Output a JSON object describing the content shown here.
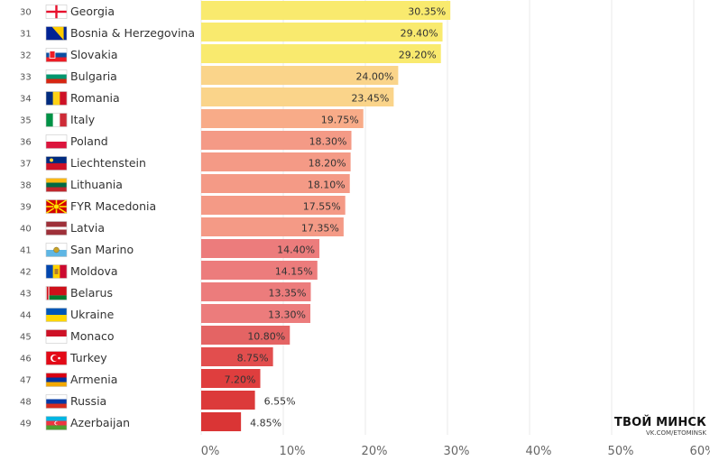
{
  "chart_data": {
    "type": "bar",
    "orientation": "horizontal",
    "ranks": [
      30,
      31,
      32,
      33,
      34,
      35,
      36,
      37,
      38,
      39,
      40,
      41,
      42,
      43,
      44,
      45,
      46,
      47,
      48,
      49
    ],
    "categories": [
      "Georgia",
      "Bosnia & Herzegovina",
      "Slovakia",
      "Bulgaria",
      "Romania",
      "Italy",
      "Poland",
      "Liechtenstein",
      "Lithuania",
      "FYR Macedonia",
      "Latvia",
      "San Marino",
      "Moldova",
      "Belarus",
      "Ukraine",
      "Monaco",
      "Turkey",
      "Armenia",
      "Russia",
      "Azerbaijan"
    ],
    "values": [
      30.35,
      29.4,
      29.2,
      24.0,
      23.45,
      19.75,
      18.3,
      18.2,
      18.1,
      17.55,
      17.35,
      14.4,
      14.15,
      13.35,
      13.3,
      10.8,
      8.75,
      7.2,
      6.55,
      4.85
    ],
    "value_labels": [
      "30.35%",
      "29.40%",
      "29.20%",
      "24.00%",
      "23.45%",
      "19.75%",
      "18.30%",
      "18.20%",
      "18.10%",
      "17.55%",
      "17.35%",
      "14.40%",
      "14.15%",
      "13.35%",
      "13.30%",
      "10.80%",
      "8.75%",
      "7.20%",
      "6.55%",
      "4.85%"
    ],
    "bar_colors": [
      "#f9ea6e",
      "#f9ea6e",
      "#f9ea6e",
      "#fad48a",
      "#fad48a",
      "#f8ab88",
      "#f49a86",
      "#f49a86",
      "#f49a86",
      "#f49a86",
      "#f49a86",
      "#ec7c7c",
      "#ec7c7c",
      "#ec7c7c",
      "#ec7c7c",
      "#e46464",
      "#e24e4e",
      "#df3e3e",
      "#dc3a3a",
      "#da3535"
    ],
    "flag_icons": [
      "flag-georgia",
      "flag-bosnia-herzegovina",
      "flag-slovakia",
      "flag-bulgaria",
      "flag-romania",
      "flag-italy",
      "flag-poland",
      "flag-liechtenstein",
      "flag-lithuania",
      "flag-fyr-macedonia",
      "flag-latvia",
      "flag-san-marino",
      "flag-moldova",
      "flag-belarus",
      "flag-ukraine",
      "flag-monaco",
      "flag-turkey",
      "flag-armenia",
      "flag-russia",
      "flag-azerbaijan"
    ],
    "x_ticks": [
      0,
      10,
      20,
      30,
      40,
      50,
      60
    ],
    "x_tick_labels": [
      "0%",
      "10%",
      "20%",
      "30%",
      "40%",
      "50%",
      "60%"
    ],
    "xlim": [
      0,
      60
    ],
    "grid": true
  },
  "branding": {
    "name": "ТВОЙ МИНСК",
    "sub": "VK.COM/ETOMINSK"
  }
}
